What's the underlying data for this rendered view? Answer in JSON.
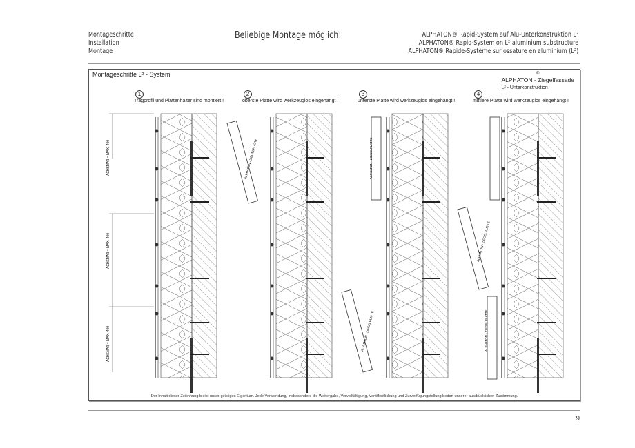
{
  "header": {
    "left": [
      "Montageschritte",
      "Installation",
      "Montage"
    ],
    "center": "Beliebige Montage möglich!",
    "right": [
      "ALPHATON® Rapid-System auf Alu-Unterkonstruktion L²",
      "ALPHATON® Rapid-System on L² aluminium substructure",
      "ALPHATON® Rapide-Système sur ossature en aluminium (L²)"
    ]
  },
  "drawing": {
    "title": "Montageschritte  L² - System",
    "brand_reg": "®",
    "brand": "ALPHATON - Ziegelfassade",
    "brand_sub": "L² - Unterkonstruktion",
    "steps": [
      {
        "num": "1",
        "text": "Tragprofil und Plattenhalter sind montiert !"
      },
      {
        "num": "2",
        "text": "oberste Platte wird werkzeuglos eingehängt !"
      },
      {
        "num": "3",
        "text": "unterste Platte wird werkzeuglos eingehängt !"
      },
      {
        "num": "4",
        "text": "mittlere Platte wird werkzeuglos eingehängt !"
      }
    ],
    "axis_label": "ACHSMAß = MAX. 400",
    "tile_label": "ALPHATON - ZIEGELPLATTE",
    "notice": "Der Inhalt dieser Zeichnung bleibt unser geistiges Eigentum. Jede Verwendung, insbesondere die Weitergabe, Vervielfältigung, Veröffentlichung und Zurverfügungstellung bedarf unserer ausdrücklichen Zustimmung."
  },
  "page_number": "9"
}
